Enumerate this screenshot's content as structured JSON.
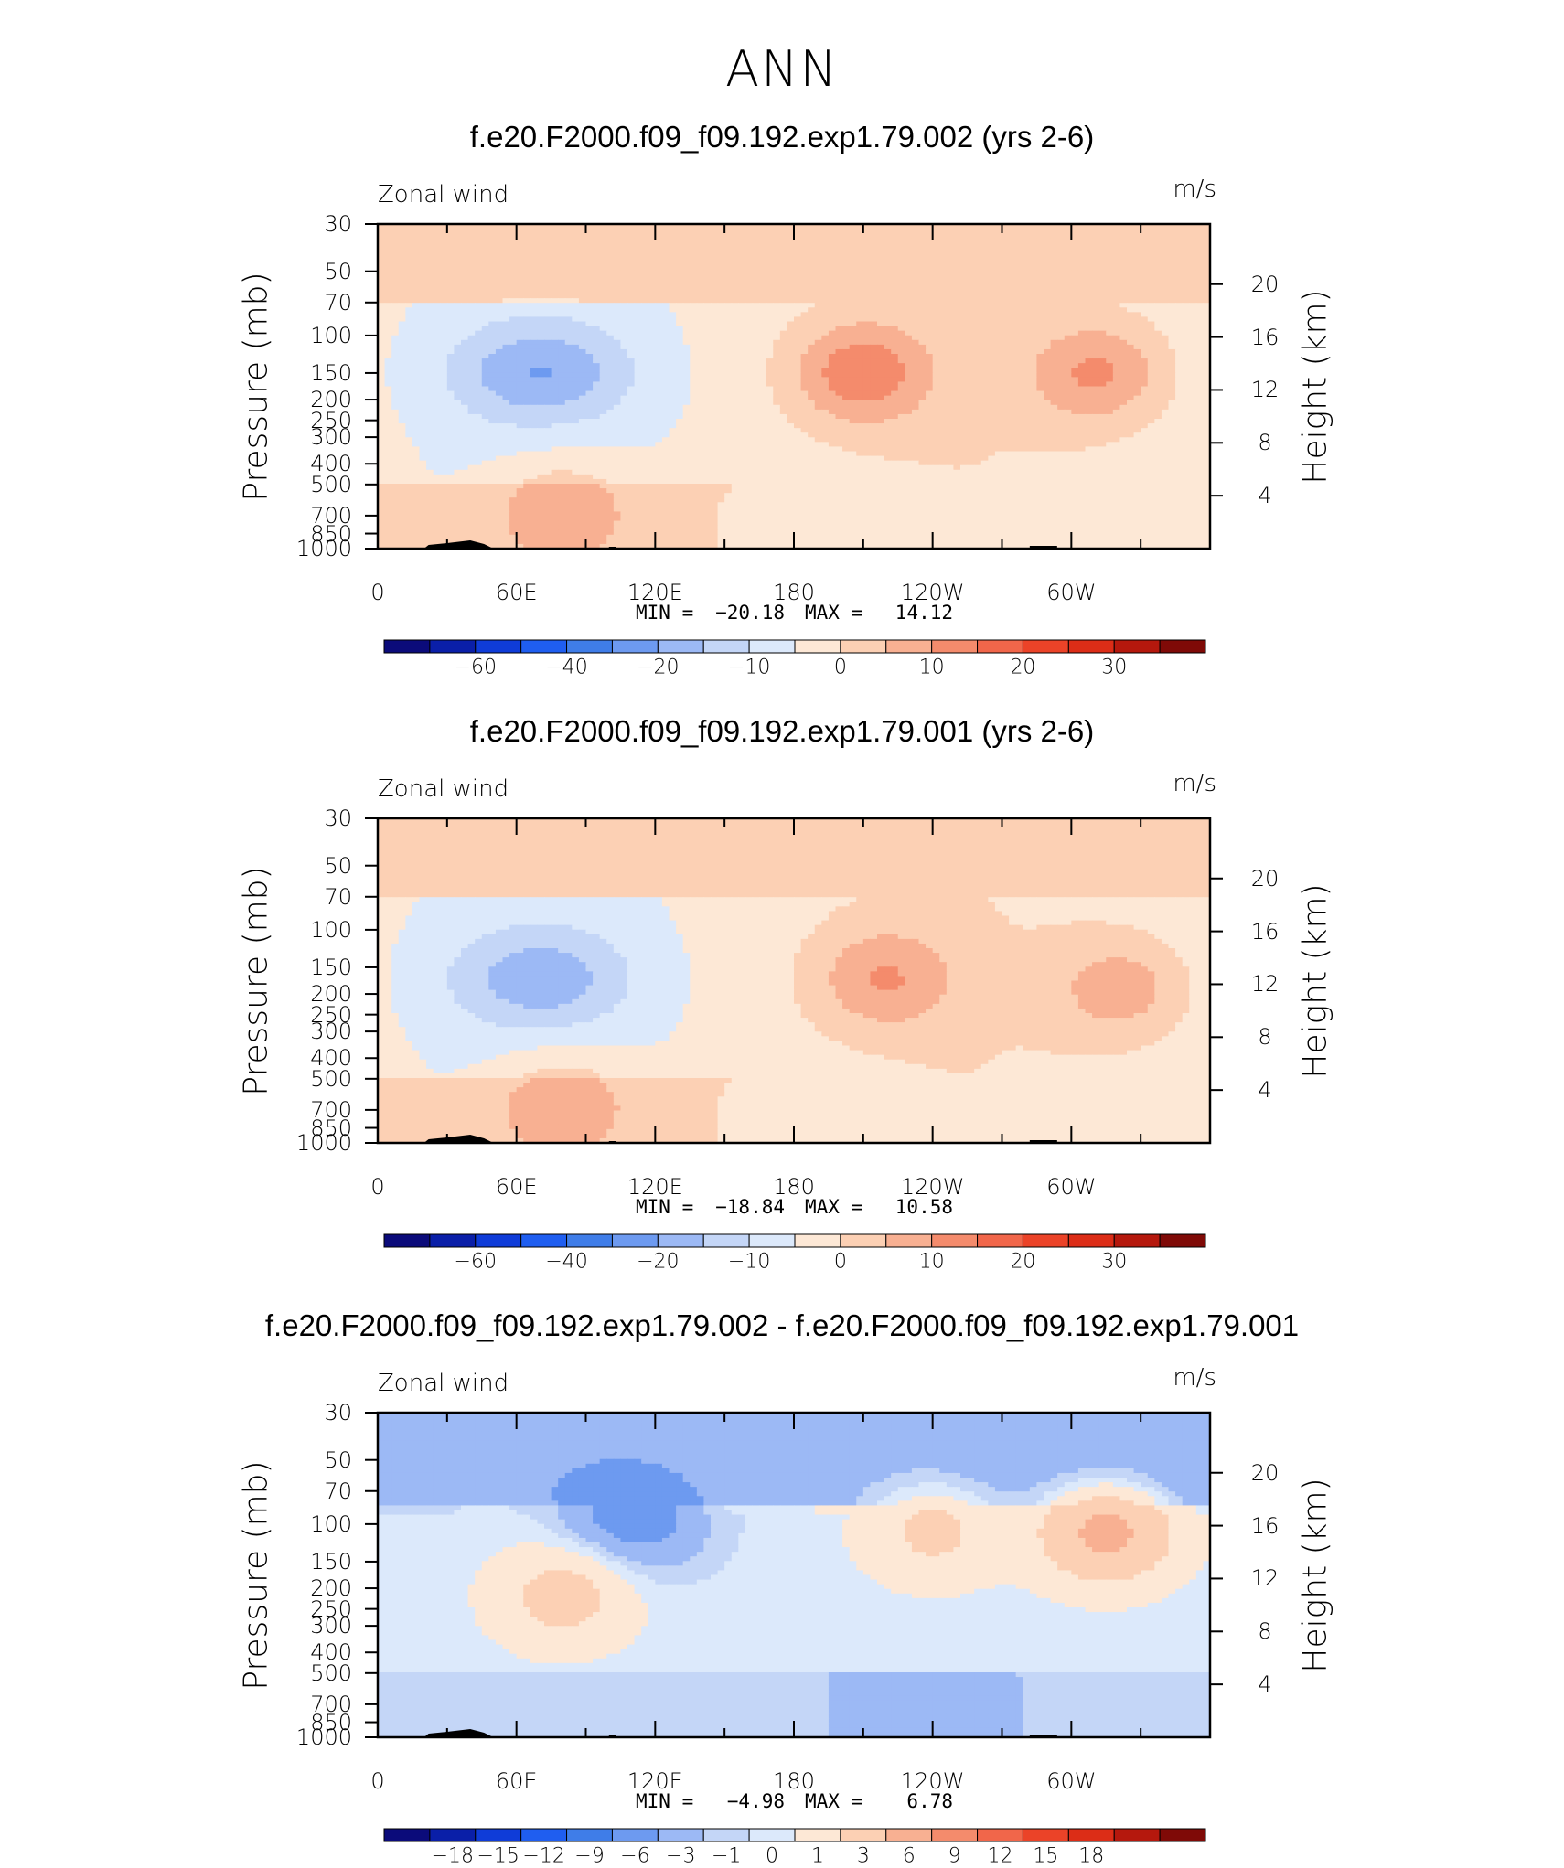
{
  "figure": {
    "title": "ANN"
  },
  "colormap": [
    "#0b0b7a",
    "#0a1fa8",
    "#0f3cd8",
    "#1f5ef0",
    "#3f7de8",
    "#6d9af0",
    "#9cb9f5",
    "#c4d6f7",
    "#dce9fb",
    "#fde8d6",
    "#fcd0b4",
    "#f8b092",
    "#f48b6c",
    "#f1664a",
    "#eb4328",
    "#dc2d17",
    "#b5180d",
    "#7f0a07"
  ],
  "panels": [
    {
      "title": "f.e20.F2000.f09_f09.192.exp1.79.002 (yrs 2-6)",
      "variable": "Zonal wind",
      "units": "m/s",
      "stats": {
        "min_label": "MIN =",
        "min": "−20.18",
        "max_label": "MAX =",
        "max": "14.12"
      },
      "colorbar_ticks": [
        "−60",
        "−40",
        "−20",
        "−10",
        "0",
        "10",
        "20",
        "30"
      ]
    },
    {
      "title": "f.e20.F2000.f09_f09.192.exp1.79.001 (yrs 2-6)",
      "variable": "Zonal wind",
      "units": "m/s",
      "stats": {
        "min_label": "MIN =",
        "min": "−18.84",
        "max_label": "MAX =",
        "max": "10.58"
      },
      "colorbar_ticks": [
        "−60",
        "−40",
        "−20",
        "−10",
        "0",
        "10",
        "20",
        "30"
      ]
    },
    {
      "title": "f.e20.F2000.f09_f09.192.exp1.79.002 - f.e20.F2000.f09_f09.192.exp1.79.001",
      "variable": "Zonal wind",
      "units": "m/s",
      "stats": {
        "min_label": "MIN =",
        "min": "−4.98",
        "max_label": "MAX =",
        "max": "6.78"
      },
      "colorbar_ticks": [
        "−18",
        "−15",
        "−12",
        "−9",
        "−6",
        "−3",
        "−1",
        "0",
        "1",
        "3",
        "6",
        "9",
        "12",
        "15",
        "18"
      ]
    }
  ],
  "chart_data": [
    {
      "type": "heatmap",
      "subtitle": "f.e20.F2000.f09_f09.192.exp1.79.002 (yrs 2-6)",
      "ylabel": "Pressure (mb)",
      "y2label": "Height (km)",
      "xticks": [
        "0",
        "60E",
        "120E",
        "180",
        "120W",
        "60W"
      ],
      "yticks": [
        "30",
        "50",
        "70",
        "100",
        "150",
        "200",
        "250",
        "300",
        "400",
        "500",
        "700",
        "850",
        "1000"
      ],
      "y2ticks": [
        "20",
        "16",
        "12",
        "8",
        "4"
      ],
      "ylim": [
        1000,
        30
      ],
      "xlim": [
        0,
        360
      ],
      "y_scale": "log",
      "min": -20.18,
      "max": 14.12,
      "levels": [
        -70,
        -65,
        -60,
        -50,
        -40,
        -30,
        -20,
        -15,
        -10,
        -5,
        0,
        5,
        10,
        15,
        20,
        25,
        30,
        35
      ],
      "features": [
        {
          "type": "min",
          "lon": 70,
          "p": 150,
          "value": -20.18
        },
        {
          "type": "max",
          "lon": 210,
          "p": 150,
          "value": 14.12
        },
        {
          "type": "max",
          "lon": 310,
          "p": 150,
          "value": 11
        },
        {
          "type": "max",
          "lon": 80,
          "p": 700,
          "value": 7
        },
        {
          "type": "min",
          "lon": 190,
          "p": 800,
          "value": -4
        }
      ]
    },
    {
      "type": "heatmap",
      "subtitle": "f.e20.F2000.f09_f09.192.exp1.79.001 (yrs 2-6)",
      "ylabel": "Pressure (mb)",
      "y2label": "Height (km)",
      "xticks": [
        "0",
        "60E",
        "120E",
        "180",
        "120W",
        "60W"
      ],
      "yticks": [
        "30",
        "50",
        "70",
        "100",
        "150",
        "200",
        "250",
        "300",
        "400",
        "500",
        "700",
        "850",
        "1000"
      ],
      "y2ticks": [
        "20",
        "16",
        "12",
        "8",
        "4"
      ],
      "ylim": [
        1000,
        30
      ],
      "xlim": [
        0,
        360
      ],
      "y_scale": "log",
      "min": -18.84,
      "max": 10.58,
      "levels": [
        -70,
        -65,
        -60,
        -50,
        -40,
        -30,
        -20,
        -15,
        -10,
        -5,
        0,
        5,
        10,
        15,
        20,
        25,
        30,
        35
      ],
      "features": [
        {
          "type": "min",
          "lon": 70,
          "p": 170,
          "value": -18.84
        },
        {
          "type": "max",
          "lon": 220,
          "p": 170,
          "value": 10.58
        },
        {
          "type": "max",
          "lon": 320,
          "p": 190,
          "value": 8
        },
        {
          "type": "max",
          "lon": 80,
          "p": 700,
          "value": 7
        },
        {
          "type": "min",
          "lon": 190,
          "p": 780,
          "value": -4
        }
      ]
    },
    {
      "type": "heatmap",
      "subtitle": "f.e20.F2000.f09_f09.192.exp1.79.002 - f.e20.F2000.f09_f09.192.exp1.79.001",
      "ylabel": "Pressure (mb)",
      "y2label": "Height (km)",
      "xticks": [
        "0",
        "60E",
        "120E",
        "180",
        "120W",
        "60W"
      ],
      "yticks": [
        "30",
        "50",
        "70",
        "100",
        "150",
        "200",
        "250",
        "300",
        "400",
        "500",
        "700",
        "850",
        "1000"
      ],
      "y2ticks": [
        "20",
        "16",
        "12",
        "8",
        "4"
      ],
      "ylim": [
        1000,
        30
      ],
      "xlim": [
        0,
        360
      ],
      "y_scale": "log",
      "min": -4.98,
      "max": 6.78,
      "levels": [
        -21,
        -18,
        -15,
        -12,
        -9,
        -6,
        -3,
        -1,
        0,
        1,
        3,
        6,
        9,
        12,
        15,
        18,
        21,
        24
      ],
      "features": [
        {
          "type": "min",
          "lon": 110,
          "p": 95,
          "value": -4.98
        },
        {
          "type": "max",
          "lon": 315,
          "p": 110,
          "value": 6.78
        },
        {
          "type": "max",
          "lon": 80,
          "p": 220,
          "value": 4
        },
        {
          "type": "max",
          "lon": 240,
          "p": 110,
          "value": 3.5
        }
      ]
    }
  ]
}
